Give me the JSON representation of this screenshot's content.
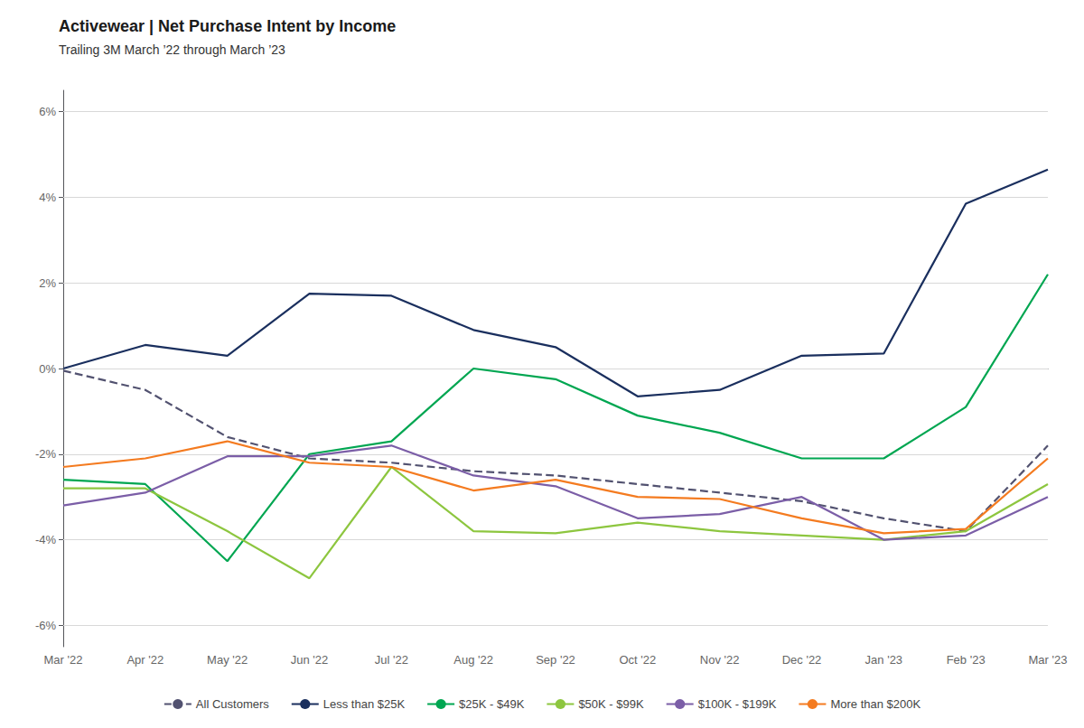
{
  "chart_data": {
    "type": "line",
    "title": "Activewear | Net Purchase Intent by Income",
    "subtitle": "Trailing 3M March ’22 through March ’23",
    "categories": [
      "Mar '22",
      "Apr '22",
      "May '22",
      "Jun '22",
      "Jul '22",
      "Aug '22",
      "Sep '22",
      "Oct '22",
      "Nov '22",
      "Dec '22",
      "Jan '23",
      "Feb '23",
      "Mar '23"
    ],
    "series": [
      {
        "name": "All Customers",
        "color": "#525270",
        "line_style": "dashed",
        "values": [
          -0.05,
          -0.5,
          -1.6,
          -2.1,
          -2.2,
          -2.4,
          -2.5,
          -2.7,
          -2.9,
          -3.1,
          -3.5,
          -3.8,
          -1.8
        ]
      },
      {
        "name": "Less than $25K",
        "color": "#1a2f5e",
        "line_style": "solid",
        "values": [
          0.0,
          0.55,
          0.3,
          1.75,
          1.7,
          0.9,
          0.5,
          -0.65,
          -0.5,
          0.3,
          0.35,
          3.85,
          4.65
        ]
      },
      {
        "name": "$25K - $49K",
        "color": "#00a651",
        "line_style": "solid",
        "values": [
          -2.6,
          -2.7,
          -4.5,
          -2.0,
          -1.7,
          0.0,
          -0.25,
          -1.1,
          -1.5,
          -2.1,
          -2.1,
          -0.9,
          2.2
        ]
      },
      {
        "name": "$50K - $99K",
        "color": "#8dc63f",
        "line_style": "solid",
        "values": [
          -2.8,
          -2.8,
          -3.8,
          -4.9,
          -2.3,
          -3.8,
          -3.85,
          -3.6,
          -3.8,
          -3.9,
          -4.0,
          -3.8,
          -2.7
        ]
      },
      {
        "name": "$100K - $199K",
        "color": "#7b5ea7",
        "line_style": "solid",
        "values": [
          -3.2,
          -2.9,
          -2.05,
          -2.05,
          -1.8,
          -2.5,
          -2.75,
          -3.5,
          -3.4,
          -3.0,
          -4.0,
          -3.9,
          -3.0
        ]
      },
      {
        "name": "More than $200K",
        "color": "#f47b20",
        "line_style": "solid",
        "values": [
          -2.3,
          -2.1,
          -1.7,
          -2.2,
          -2.3,
          -2.85,
          -2.6,
          -3.0,
          -3.05,
          -3.5,
          -3.85,
          -3.75,
          -2.1
        ]
      }
    ],
    "ylim": [
      -6.5,
      6.5
    ],
    "yticks": [
      {
        "value": -6,
        "label": "-6%"
      },
      {
        "value": -4,
        "label": "-4%"
      },
      {
        "value": -2,
        "label": "-2%"
      },
      {
        "value": 0,
        "label": "0%"
      },
      {
        "value": 2,
        "label": "2%"
      },
      {
        "value": 4,
        "label": "4%"
      },
      {
        "value": 6,
        "label": "6%"
      }
    ],
    "grid": true,
    "legend": "bottom"
  }
}
